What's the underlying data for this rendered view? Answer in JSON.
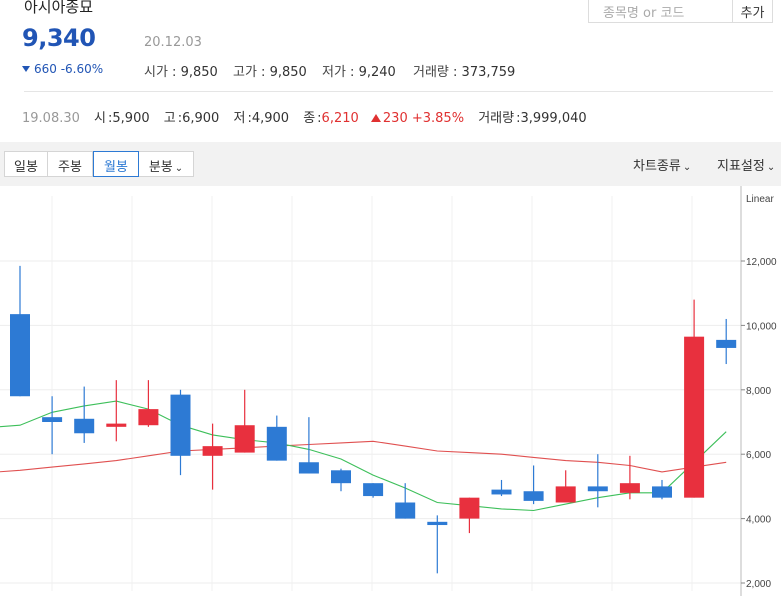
{
  "stock": {
    "name": "아시아종묘",
    "price": "9,340",
    "date": "20.12.03",
    "change": "660 -6.60%",
    "open_label": "시가",
    "open": "9,850",
    "high_label": "고가",
    "high": "9,850",
    "low_label": "저가",
    "low": "9,240",
    "volume_label": "거래량",
    "volume": "373,759"
  },
  "search": {
    "placeholder": "종목명 or 코드",
    "add_label": "추가"
  },
  "hist": {
    "date": "19.08.30",
    "open_label": "시",
    "open": "5,900",
    "high_label": "고",
    "high": "6,900",
    "low_label": "저",
    "low": "4,900",
    "close_label": "종",
    "close": "6,210",
    "change": "230 +3.85%",
    "volume_label": "거래량",
    "volume": "3,999,040"
  },
  "toolbar": {
    "tabs": [
      "일봉",
      "주봉",
      "월봉",
      "분봉"
    ],
    "active_tab": "월봉",
    "chart_type": "차트종류",
    "indicators": "지표설정"
  },
  "colors": {
    "up": "#e8303e",
    "down": "#2d7ad4",
    "ma_short": "#3dbf5a",
    "ma_long": "#e05050",
    "accent": "#2155b5"
  },
  "chart_data": {
    "type": "candlestick",
    "scale_label": "Linear",
    "y_ticks": [
      "12,000",
      "10,000",
      "8,000",
      "6,000",
      "4,000",
      "2,000"
    ],
    "ylim": [
      1800,
      13000
    ],
    "candles": [
      {
        "o": 10350,
        "h": 11850,
        "l": 7800,
        "c": 7800
      },
      {
        "o": 7150,
        "h": 7800,
        "l": 6000,
        "c": 7000
      },
      {
        "o": 7100,
        "h": 8100,
        "l": 6350,
        "c": 6650
      },
      {
        "o": 6850,
        "h": 8300,
        "l": 6400,
        "c": 6950
      },
      {
        "o": 6900,
        "h": 8300,
        "l": 6850,
        "c": 7400
      },
      {
        "o": 7850,
        "h": 8000,
        "l": 5350,
        "c": 5950
      },
      {
        "o": 5950,
        "h": 6950,
        "l": 4900,
        "c": 6250
      },
      {
        "o": 6050,
        "h": 8000,
        "l": 6050,
        "c": 6900
      },
      {
        "o": 6850,
        "h": 7200,
        "l": 5800,
        "c": 5800
      },
      {
        "o": 5750,
        "h": 7150,
        "l": 5400,
        "c": 5400
      },
      {
        "o": 5500,
        "h": 5550,
        "l": 4850,
        "c": 5100
      },
      {
        "o": 5100,
        "h": 5100,
        "l": 4650,
        "c": 4700
      },
      {
        "o": 4500,
        "h": 5100,
        "l": 4000,
        "c": 4000
      },
      {
        "o": 3900,
        "h": 4100,
        "l": 2300,
        "c": 3800
      },
      {
        "o": 4000,
        "h": 4650,
        "l": 3550,
        "c": 4650
      },
      {
        "o": 4900,
        "h": 5200,
        "l": 4700,
        "c": 4750
      },
      {
        "o": 4850,
        "h": 5650,
        "l": 4450,
        "c": 4550
      },
      {
        "o": 4500,
        "h": 5500,
        "l": 4500,
        "c": 5000
      },
      {
        "o": 5000,
        "h": 6000,
        "l": 4350,
        "c": 4850
      },
      {
        "o": 4800,
        "h": 5950,
        "l": 4600,
        "c": 5100
      },
      {
        "o": 5000,
        "h": 5200,
        "l": 4600,
        "c": 4650
      },
      {
        "o": 4650,
        "h": 10800,
        "l": 4650,
        "c": 9650
      },
      {
        "o": 9550,
        "h": 10200,
        "l": 8800,
        "c": 9300
      }
    ],
    "ma_short": [
      6900,
      7300,
      7500,
      7650,
      7400,
      6900,
      6600,
      6450,
      6350,
      6150,
      5850,
      5350,
      4950,
      4500,
      4400,
      4300,
      4250,
      4450,
      4650,
      4800,
      4800,
      5750,
      6700
    ],
    "ma_long": [
      5500,
      5600,
      5700,
      5800,
      5950,
      6100,
      6150,
      6200,
      6250,
      6300,
      6350,
      6400,
      6250,
      6100,
      6050,
      6000,
      5900,
      5800,
      5750,
      5650,
      5450,
      5600,
      5750
    ]
  }
}
